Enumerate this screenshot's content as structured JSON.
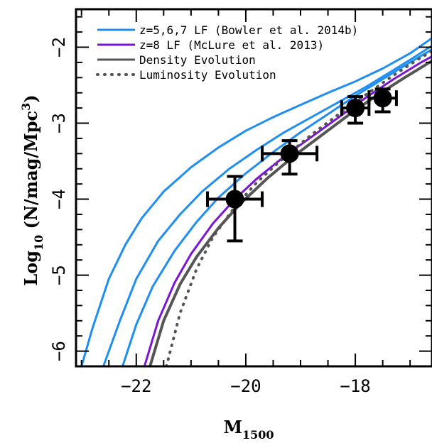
{
  "chart_data": {
    "type": "line",
    "xlabel_main": "M",
    "xlabel_sub": "1500",
    "ylabel_pre": "Log",
    "ylabel_sub": "10",
    "ylabel_post": " (N/mag/Mpc",
    "ylabel_sup": "3",
    "ylabel_close": ")",
    "xlim": [
      -23.1,
      -16.6
    ],
    "ylim": [
      -6.2,
      -1.5
    ],
    "xticks": [
      {
        "value": -22,
        "label": "−22"
      },
      {
        "value": -20,
        "label": "−20"
      },
      {
        "value": -18,
        "label": "−18"
      }
    ],
    "yticks": [
      {
        "value": -2,
        "label": "−2"
      },
      {
        "value": -3,
        "label": "−3"
      },
      {
        "value": -4,
        "label": "−4"
      },
      {
        "value": -5,
        "label": "−5"
      },
      {
        "value": -6,
        "label": "−6"
      }
    ],
    "legend_position": "top-left",
    "series": [
      {
        "name": "z=5,6,7 LF (Bowler et al. 2014b)",
        "color": "#1f8ef2",
        "style": "solid",
        "x": [
          -23.0,
          -22.8,
          -22.5,
          -22.2,
          -21.9,
          -21.5,
          -21.0,
          -20.5,
          -20.0,
          -19.5,
          -19.0,
          -18.5,
          -18.0,
          -17.5,
          -17.0,
          -16.6
        ],
        "y": [
          -6.2,
          -5.7,
          -5.05,
          -4.6,
          -4.25,
          -3.9,
          -3.58,
          -3.32,
          -3.1,
          -2.92,
          -2.76,
          -2.6,
          -2.45,
          -2.28,
          -2.08,
          -1.88
        ]
      },
      {
        "name": "",
        "color": "#1f8ef2",
        "style": "solid",
        "x": [
          -22.6,
          -22.3,
          -22.0,
          -21.6,
          -21.2,
          -20.8,
          -20.3,
          -19.8,
          -19.3,
          -18.8,
          -18.3,
          -17.8,
          -17.3,
          -16.9,
          -16.6
        ],
        "y": [
          -6.2,
          -5.6,
          -5.05,
          -4.55,
          -4.2,
          -3.9,
          -3.6,
          -3.35,
          -3.12,
          -2.92,
          -2.72,
          -2.52,
          -2.3,
          -2.12,
          -1.98
        ]
      },
      {
        "name": "",
        "color": "#1f8ef2",
        "style": "solid",
        "x": [
          -22.25,
          -22.0,
          -21.7,
          -21.3,
          -20.9,
          -20.5,
          -20.0,
          -19.5,
          -19.0,
          -18.5,
          -18.0,
          -17.5,
          -17.0,
          -16.6
        ],
        "y": [
          -6.2,
          -5.65,
          -5.15,
          -4.68,
          -4.3,
          -3.98,
          -3.66,
          -3.38,
          -3.12,
          -2.88,
          -2.64,
          -2.42,
          -2.2,
          -2.03
        ]
      },
      {
        "name": "z=8 LF (McLure et al. 2013)",
        "color": "#7b14d6",
        "style": "solid",
        "x": [
          -21.85,
          -21.6,
          -21.3,
          -21.0,
          -20.6,
          -20.2,
          -19.8,
          -19.3,
          -18.8,
          -18.3,
          -17.8,
          -17.3,
          -16.8,
          -16.6
        ],
        "y": [
          -6.2,
          -5.6,
          -5.1,
          -4.72,
          -4.32,
          -4.0,
          -3.73,
          -3.44,
          -3.18,
          -2.92,
          -2.66,
          -2.42,
          -2.2,
          -2.12
        ]
      },
      {
        "name": "Density Evolution",
        "color": "#555555",
        "style": "solid",
        "x": [
          -21.75,
          -21.5,
          -21.2,
          -20.9,
          -20.5,
          -20.1,
          -19.6,
          -19.1,
          -18.6,
          -18.1,
          -17.6,
          -17.1,
          -16.6
        ],
        "y": [
          -6.2,
          -5.6,
          -5.12,
          -4.76,
          -4.38,
          -4.06,
          -3.72,
          -3.42,
          -3.15,
          -2.88,
          -2.63,
          -2.4,
          -2.18
        ]
      },
      {
        "name": "Luminosity Evolution",
        "color": "#555555",
        "style": "dotted",
        "x": [
          -21.45,
          -21.2,
          -20.9,
          -20.6,
          -20.2,
          -19.8,
          -19.3,
          -18.8,
          -18.3,
          -17.8,
          -17.3,
          -16.9,
          -16.6
        ],
        "y": [
          -6.2,
          -5.5,
          -4.92,
          -4.5,
          -4.1,
          -3.78,
          -3.45,
          -3.15,
          -2.88,
          -2.62,
          -2.37,
          -2.18,
          -2.05
        ]
      }
    ],
    "points": [
      {
        "x": -20.2,
        "y": -4.0,
        "xerr": [
          0.5,
          0.5
        ],
        "yerr": [
          0.3,
          0.55
        ]
      },
      {
        "x": -19.2,
        "y": -3.4,
        "xerr": [
          0.5,
          0.5
        ],
        "yerr": [
          0.17,
          0.27
        ]
      },
      {
        "x": -18.0,
        "y": -2.8,
        "xerr": [
          0.25,
          0.25
        ],
        "yerr": [
          0.15,
          0.2
        ]
      },
      {
        "x": -17.5,
        "y": -2.67,
        "xerr": [
          0.25,
          0.25
        ],
        "yerr": [
          0.12,
          0.18
        ]
      }
    ]
  }
}
